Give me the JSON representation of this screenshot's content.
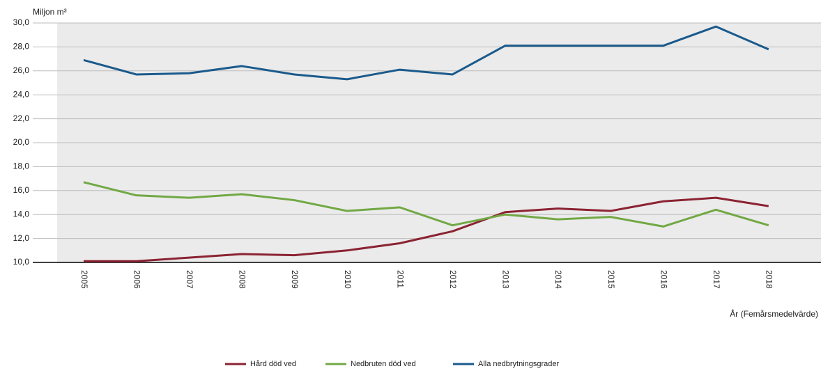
{
  "chart_data": {
    "type": "line",
    "y_axis_label": "Miljon m³",
    "x_axis_label": "År (Femårsmedelvärde)",
    "categories": [
      "2005",
      "2006",
      "2007",
      "2008",
      "2009",
      "2010",
      "2011",
      "2012",
      "2013",
      "2014",
      "2015",
      "2016",
      "2017",
      "2018"
    ],
    "series": [
      {
        "name": "Hård död ved",
        "color": "#8b2332",
        "values": [
          10.1,
          10.1,
          10.4,
          10.7,
          10.6,
          11.0,
          11.6,
          12.6,
          14.2,
          14.5,
          14.3,
          15.1,
          15.4,
          14.7
        ]
      },
      {
        "name": "Nedbruten död ved",
        "color": "#72a844",
        "values": [
          16.7,
          15.6,
          15.4,
          15.7,
          15.2,
          14.3,
          14.6,
          13.1,
          14.0,
          13.6,
          13.8,
          13.0,
          14.4,
          13.1
        ]
      },
      {
        "name": "Alla nedbrytningsgrader",
        "color": "#1a5a8c",
        "values": [
          26.9,
          25.7,
          25.8,
          26.4,
          25.7,
          25.3,
          26.1,
          25.7,
          28.1,
          28.1,
          28.1,
          28.1,
          29.7,
          27.8
        ]
      }
    ],
    "ylim": [
      10,
      30
    ],
    "yticks": [
      {
        "value": 10,
        "label": "10,0"
      },
      {
        "value": 12,
        "label": "12,0"
      },
      {
        "value": 14,
        "label": "14,0"
      },
      {
        "value": 16,
        "label": "16,0"
      },
      {
        "value": 18,
        "label": "18,0"
      },
      {
        "value": 20,
        "label": "20,0"
      },
      {
        "value": 22,
        "label": "22,0"
      },
      {
        "value": 24,
        "label": "24,0"
      },
      {
        "value": 26,
        "label": "26,0"
      },
      {
        "value": 28,
        "label": "28,0"
      },
      {
        "value": 30,
        "label": "30,0"
      }
    ],
    "grid": true,
    "legend": "bottom"
  }
}
